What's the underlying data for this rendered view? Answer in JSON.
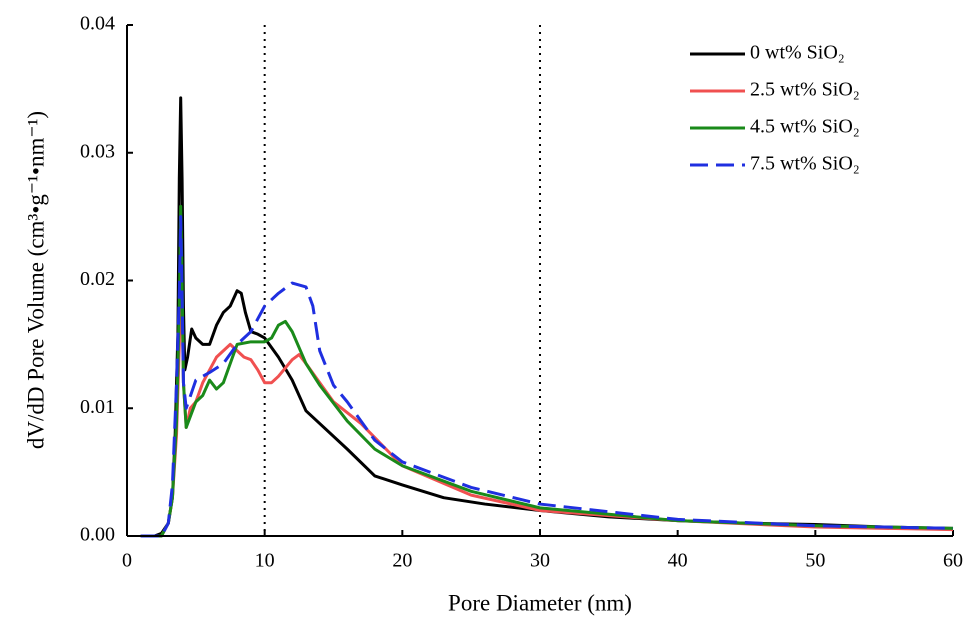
{
  "chart_data": {
    "type": "line",
    "x_label": "Pore Diameter (nm)",
    "y_label": "dV/dD Pore Volume (cm³•g⁻¹•nm⁻¹)",
    "xlim": [
      0,
      60
    ],
    "xticks": [
      0,
      10,
      20,
      30,
      40,
      50,
      60
    ],
    "ylim": [
      0,
      0.04
    ],
    "yticks": [
      {
        "value": 0,
        "label": "0.00"
      },
      0.01,
      0.02,
      0.03,
      0.04
    ],
    "vlines": [
      10,
      30
    ],
    "legend": "top-right",
    "series": [
      {
        "name": "0 wt% SiO₂",
        "color": "#000000",
        "dash": "solid",
        "x": [
          1,
          2,
          2.5,
          3,
          3.3,
          3.5,
          3.7,
          3.8,
          3.9,
          4.0,
          4.1,
          4.2,
          4.4,
          4.7,
          5,
          5.5,
          6,
          6.5,
          7,
          7.5,
          8,
          8.3,
          8.6,
          9,
          9.5,
          10,
          11,
          12,
          13,
          14,
          16,
          18,
          20,
          23,
          26,
          30,
          35,
          40,
          45,
          50,
          55,
          60
        ],
        "values": [
          0,
          0,
          0.0002,
          0.001,
          0.003,
          0.008,
          0.016,
          0.028,
          0.0343,
          0.028,
          0.018,
          0.013,
          0.014,
          0.0162,
          0.0155,
          0.015,
          0.015,
          0.0165,
          0.0175,
          0.018,
          0.0192,
          0.019,
          0.0175,
          0.016,
          0.0158,
          0.0155,
          0.014,
          0.0122,
          0.0098,
          0.0088,
          0.0068,
          0.0047,
          0.004,
          0.003,
          0.0025,
          0.002,
          0.0015,
          0.0012,
          0.001,
          0.0009,
          0.0007,
          0.0006
        ]
      },
      {
        "name": "2.5 wt% SiO₂",
        "color": "#f05050",
        "dash": "solid",
        "x": [
          1,
          2.5,
          3,
          3.3,
          3.6,
          3.8,
          3.9,
          4.0,
          4.1,
          4.3,
          4.6,
          5,
          5.5,
          6,
          6.5,
          7,
          7.5,
          8,
          8.5,
          9,
          9.5,
          10,
          10.5,
          11,
          12,
          12.5,
          13,
          14,
          15,
          17,
          20,
          25,
          30,
          40,
          50,
          60
        ],
        "values": [
          0,
          0,
          0.001,
          0.003,
          0.008,
          0.015,
          0.021,
          0.018,
          0.012,
          0.0085,
          0.01,
          0.0105,
          0.012,
          0.013,
          0.014,
          0.0145,
          0.015,
          0.0145,
          0.014,
          0.0138,
          0.013,
          0.012,
          0.012,
          0.0125,
          0.0138,
          0.0142,
          0.0135,
          0.012,
          0.0105,
          0.0088,
          0.0055,
          0.0032,
          0.002,
          0.0012,
          0.0007,
          0.0005
        ]
      },
      {
        "name": "4.5 wt% SiO₂",
        "color": "#1a8a1a",
        "dash": "solid",
        "x": [
          1,
          2.5,
          3,
          3.3,
          3.6,
          3.8,
          3.9,
          4.0,
          4.1,
          4.3,
          5,
          5.5,
          6,
          6.5,
          7,
          7.5,
          8,
          9,
          10,
          10.5,
          11,
          11.5,
          12,
          13,
          14,
          16,
          18,
          20,
          25,
          30,
          40,
          50,
          60
        ],
        "values": [
          0,
          0,
          0.001,
          0.003,
          0.009,
          0.018,
          0.0258,
          0.02,
          0.012,
          0.0085,
          0.0105,
          0.011,
          0.0122,
          0.0115,
          0.012,
          0.0135,
          0.015,
          0.0152,
          0.0152,
          0.0155,
          0.0165,
          0.0168,
          0.016,
          0.0135,
          0.0118,
          0.009,
          0.0068,
          0.0055,
          0.0035,
          0.0022,
          0.0012,
          0.0008,
          0.0006
        ]
      },
      {
        "name": "7.5 wt% SiO₂",
        "color": "#1f2fe0",
        "dash": "dashed",
        "x": [
          1,
          2.5,
          3,
          3.3,
          3.6,
          3.8,
          3.9,
          4.0,
          4.1,
          4.3,
          5,
          6,
          7,
          8,
          9,
          9.5,
          10,
          11,
          12,
          13,
          13.5,
          14,
          15,
          16,
          18,
          20,
          25,
          30,
          40,
          50,
          60
        ],
        "values": [
          0,
          0,
          0.001,
          0.004,
          0.012,
          0.019,
          0.025,
          0.019,
          0.012,
          0.01,
          0.0122,
          0.0128,
          0.0135,
          0.015,
          0.016,
          0.017,
          0.018,
          0.019,
          0.0198,
          0.0195,
          0.018,
          0.0145,
          0.0118,
          0.0105,
          0.0075,
          0.0058,
          0.0038,
          0.0025,
          0.0013,
          0.0008,
          0.0006
        ]
      }
    ]
  }
}
